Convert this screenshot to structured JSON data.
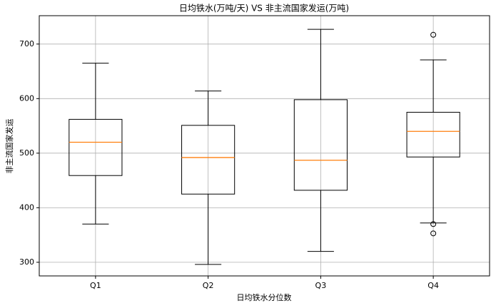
{
  "chart_data": {
    "type": "box",
    "title": "日均铁水(万吨/天) VS 非主流国家发运(万吨)",
    "x_label": "日均铁水分位数",
    "y_label": "非主流国家发运",
    "categories": [
      "Q1",
      "Q2",
      "Q3",
      "Q4"
    ],
    "boxes": [
      {
        "low": 370,
        "q1": 459,
        "median": 520,
        "q3": 562,
        "high": 665,
        "outliers": []
      },
      {
        "low": 296,
        "q1": 425,
        "median": 492,
        "q3": 551,
        "high": 614,
        "outliers": []
      },
      {
        "low": 320,
        "q1": 432,
        "median": 487,
        "q3": 598,
        "high": 727,
        "outliers": []
      },
      {
        "low": 372,
        "q1": 493,
        "median": 540,
        "q3": 575,
        "high": 671,
        "outliers": [
          717,
          370,
          353
        ]
      }
    ],
    "box_color": "#000000",
    "median_color": "#ff7f0e",
    "ylim": [
      275,
      752
    ],
    "yticks": [
      300,
      400,
      500,
      600,
      700
    ],
    "grid": true
  }
}
